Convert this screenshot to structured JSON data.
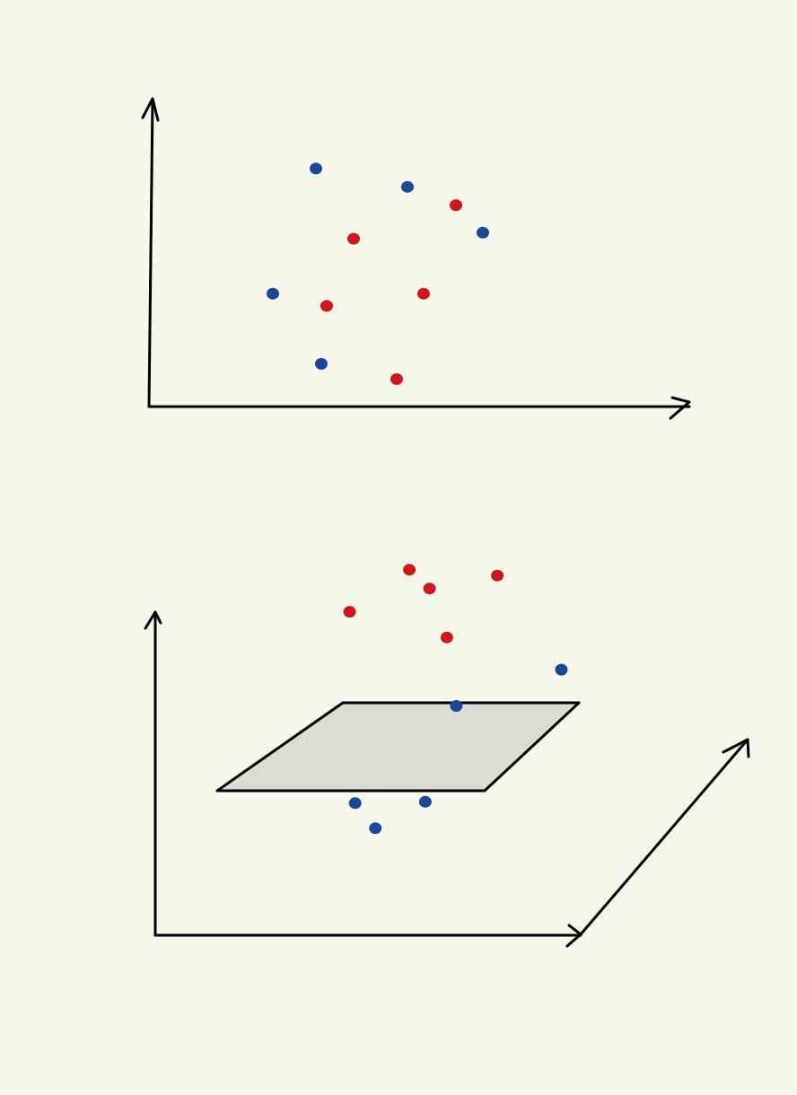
{
  "colors": {
    "background": "#f6f6ea",
    "red": "#d0161b",
    "blue": "#1a4a97",
    "plane": "#dcdcd2",
    "ink": "#000000"
  },
  "chart_data": [
    {
      "type": "scatter",
      "view": "2d",
      "title": "",
      "xlabel": "",
      "ylabel": "",
      "xlim": [
        0,
        100
      ],
      "ylim": [
        0,
        100
      ],
      "grid": false,
      "series": [
        {
          "color": "blue",
          "points": [
            [
              31,
              78
            ],
            [
              48,
              72
            ],
            [
              62,
              57
            ],
            [
              23,
              37
            ],
            [
              32,
              14
            ]
          ]
        },
        {
          "color": "red",
          "points": [
            [
              57,
              66
            ],
            [
              38,
              55
            ],
            [
              51,
              37
            ],
            [
              33,
              33
            ],
            [
              46,
              9
            ]
          ]
        }
      ]
    },
    {
      "type": "scatter",
      "view": "3d",
      "title": "",
      "xlabel": "",
      "ylabel": "",
      "zlabel": "",
      "grid": false,
      "separating_plane": true,
      "series": [
        {
          "color": "red",
          "points": [
            [
              46,
              35,
              92
            ],
            [
              30,
              40,
              76
            ],
            [
              48,
              42,
              82
            ],
            [
              60,
              52,
              80
            ],
            [
              45,
              60,
              56
            ]
          ]
        },
        {
          "color": "blue",
          "points": [
            [
              48,
              58,
              36
            ],
            [
              68,
              70,
              40
            ],
            [
              36,
              28,
              24
            ],
            [
              47,
              42,
              16
            ],
            [
              38,
              35,
              12
            ]
          ]
        }
      ]
    }
  ]
}
